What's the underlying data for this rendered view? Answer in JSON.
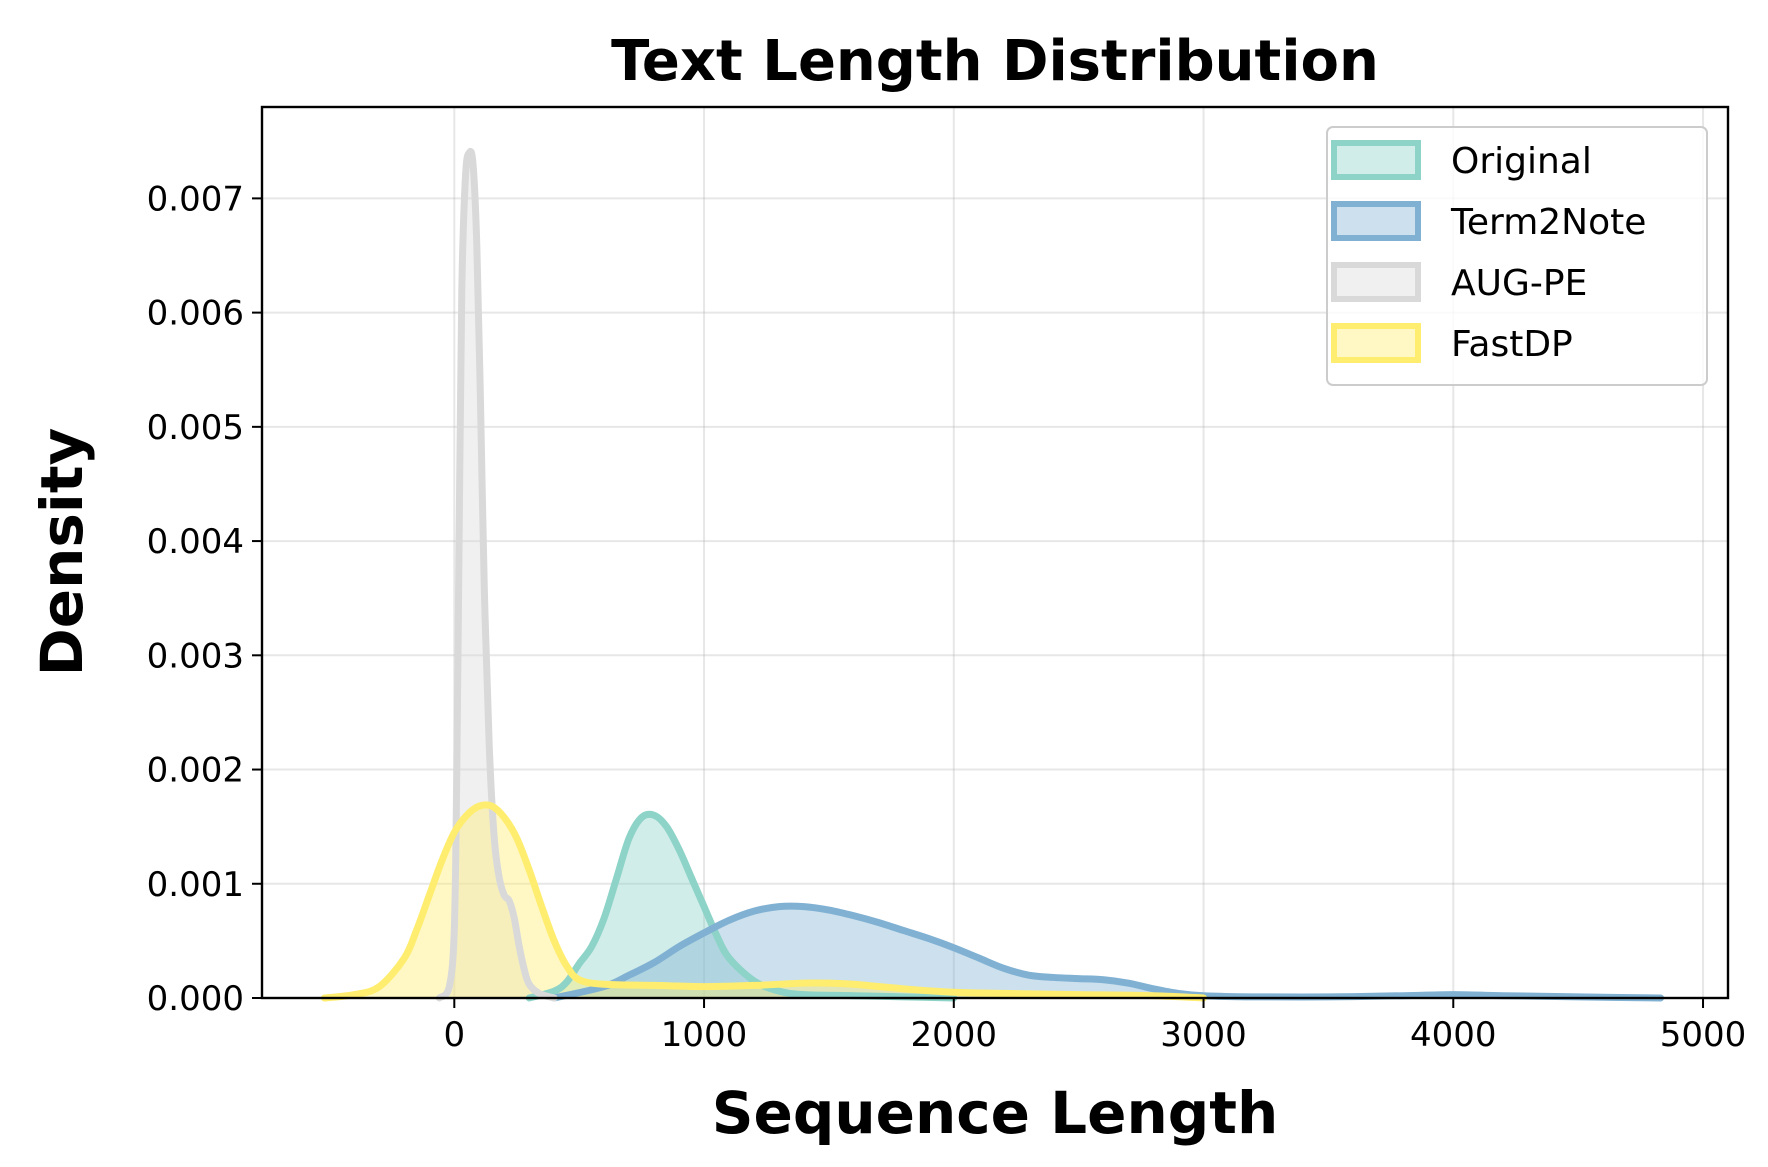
{
  "chart_data": {
    "type": "area",
    "title": "Text Length Distribution",
    "xlabel": "Sequence Length",
    "ylabel": "Density",
    "xlim": [
      -770,
      5100
    ],
    "ylim": [
      0,
      0.0078
    ],
    "xticks": [
      0,
      1000,
      2000,
      3000,
      4000,
      5000
    ],
    "xtick_labels": [
      "0",
      "1000",
      "2000",
      "3000",
      "4000",
      "5000"
    ],
    "yticks": [
      0,
      0.001,
      0.002,
      0.003,
      0.004,
      0.005,
      0.006,
      0.007
    ],
    "ytick_labels": [
      "0.000",
      "0.001",
      "0.002",
      "0.003",
      "0.004",
      "0.005",
      "0.006",
      "0.007"
    ],
    "grid": true,
    "legend_position": "top-right",
    "series": [
      {
        "name": "Original",
        "color": "#8dd3c7",
        "fill_opacity": 0.4,
        "points": [
          [
            300,
            0
          ],
          [
            400,
            6e-05
          ],
          [
            450,
            0.00014
          ],
          [
            500,
            0.0003
          ],
          [
            550,
            0.00045
          ],
          [
            600,
            0.0007
          ],
          [
            650,
            0.00105
          ],
          [
            700,
            0.0014
          ],
          [
            750,
            0.00158
          ],
          [
            800,
            0.0016
          ],
          [
            850,
            0.0015
          ],
          [
            900,
            0.0013
          ],
          [
            950,
            0.00105
          ],
          [
            1000,
            0.0008
          ],
          [
            1050,
            0.00055
          ],
          [
            1100,
            0.00035
          ],
          [
            1200,
            0.00015
          ],
          [
            1300,
            6e-05
          ],
          [
            1400,
            3e-05
          ],
          [
            1600,
            2e-05
          ],
          [
            1800,
            1e-05
          ],
          [
            2000,
            0
          ]
        ]
      },
      {
        "name": "Term2Note",
        "color": "#80b1d3",
        "fill_opacity": 0.4,
        "points": [
          [
            400,
            0
          ],
          [
            600,
            0.0001
          ],
          [
            700,
            0.0002
          ],
          [
            800,
            0.00031
          ],
          [
            900,
            0.00045
          ],
          [
            1000,
            0.00057
          ],
          [
            1100,
            0.00068
          ],
          [
            1200,
            0.00076
          ],
          [
            1300,
            0.0008
          ],
          [
            1400,
            0.0008
          ],
          [
            1500,
            0.00077
          ],
          [
            1600,
            0.00072
          ],
          [
            1700,
            0.00066
          ],
          [
            1800,
            0.00059
          ],
          [
            1900,
            0.00052
          ],
          [
            2000,
            0.00044
          ],
          [
            2100,
            0.00035
          ],
          [
            2200,
            0.00026
          ],
          [
            2300,
            0.0002
          ],
          [
            2400,
            0.00018
          ],
          [
            2500,
            0.00017
          ],
          [
            2600,
            0.00016
          ],
          [
            2700,
            0.00013
          ],
          [
            2800,
            8e-05
          ],
          [
            2900,
            4e-05
          ],
          [
            3000,
            2e-05
          ],
          [
            3200,
            1e-05
          ],
          [
            3500,
            1e-05
          ],
          [
            3800,
            2e-05
          ],
          [
            4000,
            3e-05
          ],
          [
            4200,
            2e-05
          ],
          [
            4500,
            1e-05
          ],
          [
            4830,
            0
          ]
        ]
      },
      {
        "name": "AUG-PE",
        "color": "#d9d9d9",
        "fill_opacity": 0.4,
        "points": [
          [
            -60,
            0
          ],
          [
            -20,
            0.0001
          ],
          [
            0,
            0.0006
          ],
          [
            10,
            0.002
          ],
          [
            20,
            0.0042
          ],
          [
            30,
            0.0062
          ],
          [
            45,
            0.0072
          ],
          [
            60,
            0.0074
          ],
          [
            75,
            0.0073
          ],
          [
            90,
            0.0066
          ],
          [
            105,
            0.0052
          ],
          [
            120,
            0.0036
          ],
          [
            140,
            0.0022
          ],
          [
            160,
            0.0014
          ],
          [
            180,
            0.00105
          ],
          [
            200,
            0.0009
          ],
          [
            220,
            0.00085
          ],
          [
            240,
            0.0007
          ],
          [
            260,
            0.00045
          ],
          [
            280,
            0.00025
          ],
          [
            300,
            0.00012
          ],
          [
            340,
            4e-05
          ],
          [
            400,
            0
          ]
        ]
      },
      {
        "name": "FastDP",
        "color": "#ffed6f",
        "fill_opacity": 0.4,
        "points": [
          [
            -520,
            0
          ],
          [
            -400,
            3e-05
          ],
          [
            -300,
            0.0001
          ],
          [
            -200,
            0.00035
          ],
          [
            -150,
            0.0006
          ],
          [
            -100,
            0.0009
          ],
          [
            -50,
            0.0012
          ],
          [
            0,
            0.00145
          ],
          [
            50,
            0.0016
          ],
          [
            100,
            0.00168
          ],
          [
            150,
            0.00168
          ],
          [
            200,
            0.00158
          ],
          [
            250,
            0.0014
          ],
          [
            300,
            0.00112
          ],
          [
            350,
            0.0008
          ],
          [
            400,
            0.0005
          ],
          [
            450,
            0.00028
          ],
          [
            500,
            0.00016
          ],
          [
            600,
            0.00012
          ],
          [
            800,
            0.00011
          ],
          [
            1000,
            0.0001
          ],
          [
            1200,
            0.00011
          ],
          [
            1400,
            0.00013
          ],
          [
            1500,
            0.00013
          ],
          [
            1600,
            0.00012
          ],
          [
            1800,
            8e-05
          ],
          [
            2000,
            5e-05
          ],
          [
            2200,
            4e-05
          ],
          [
            2500,
            3e-05
          ],
          [
            2800,
            2e-05
          ],
          [
            3000,
            0
          ]
        ]
      }
    ]
  }
}
